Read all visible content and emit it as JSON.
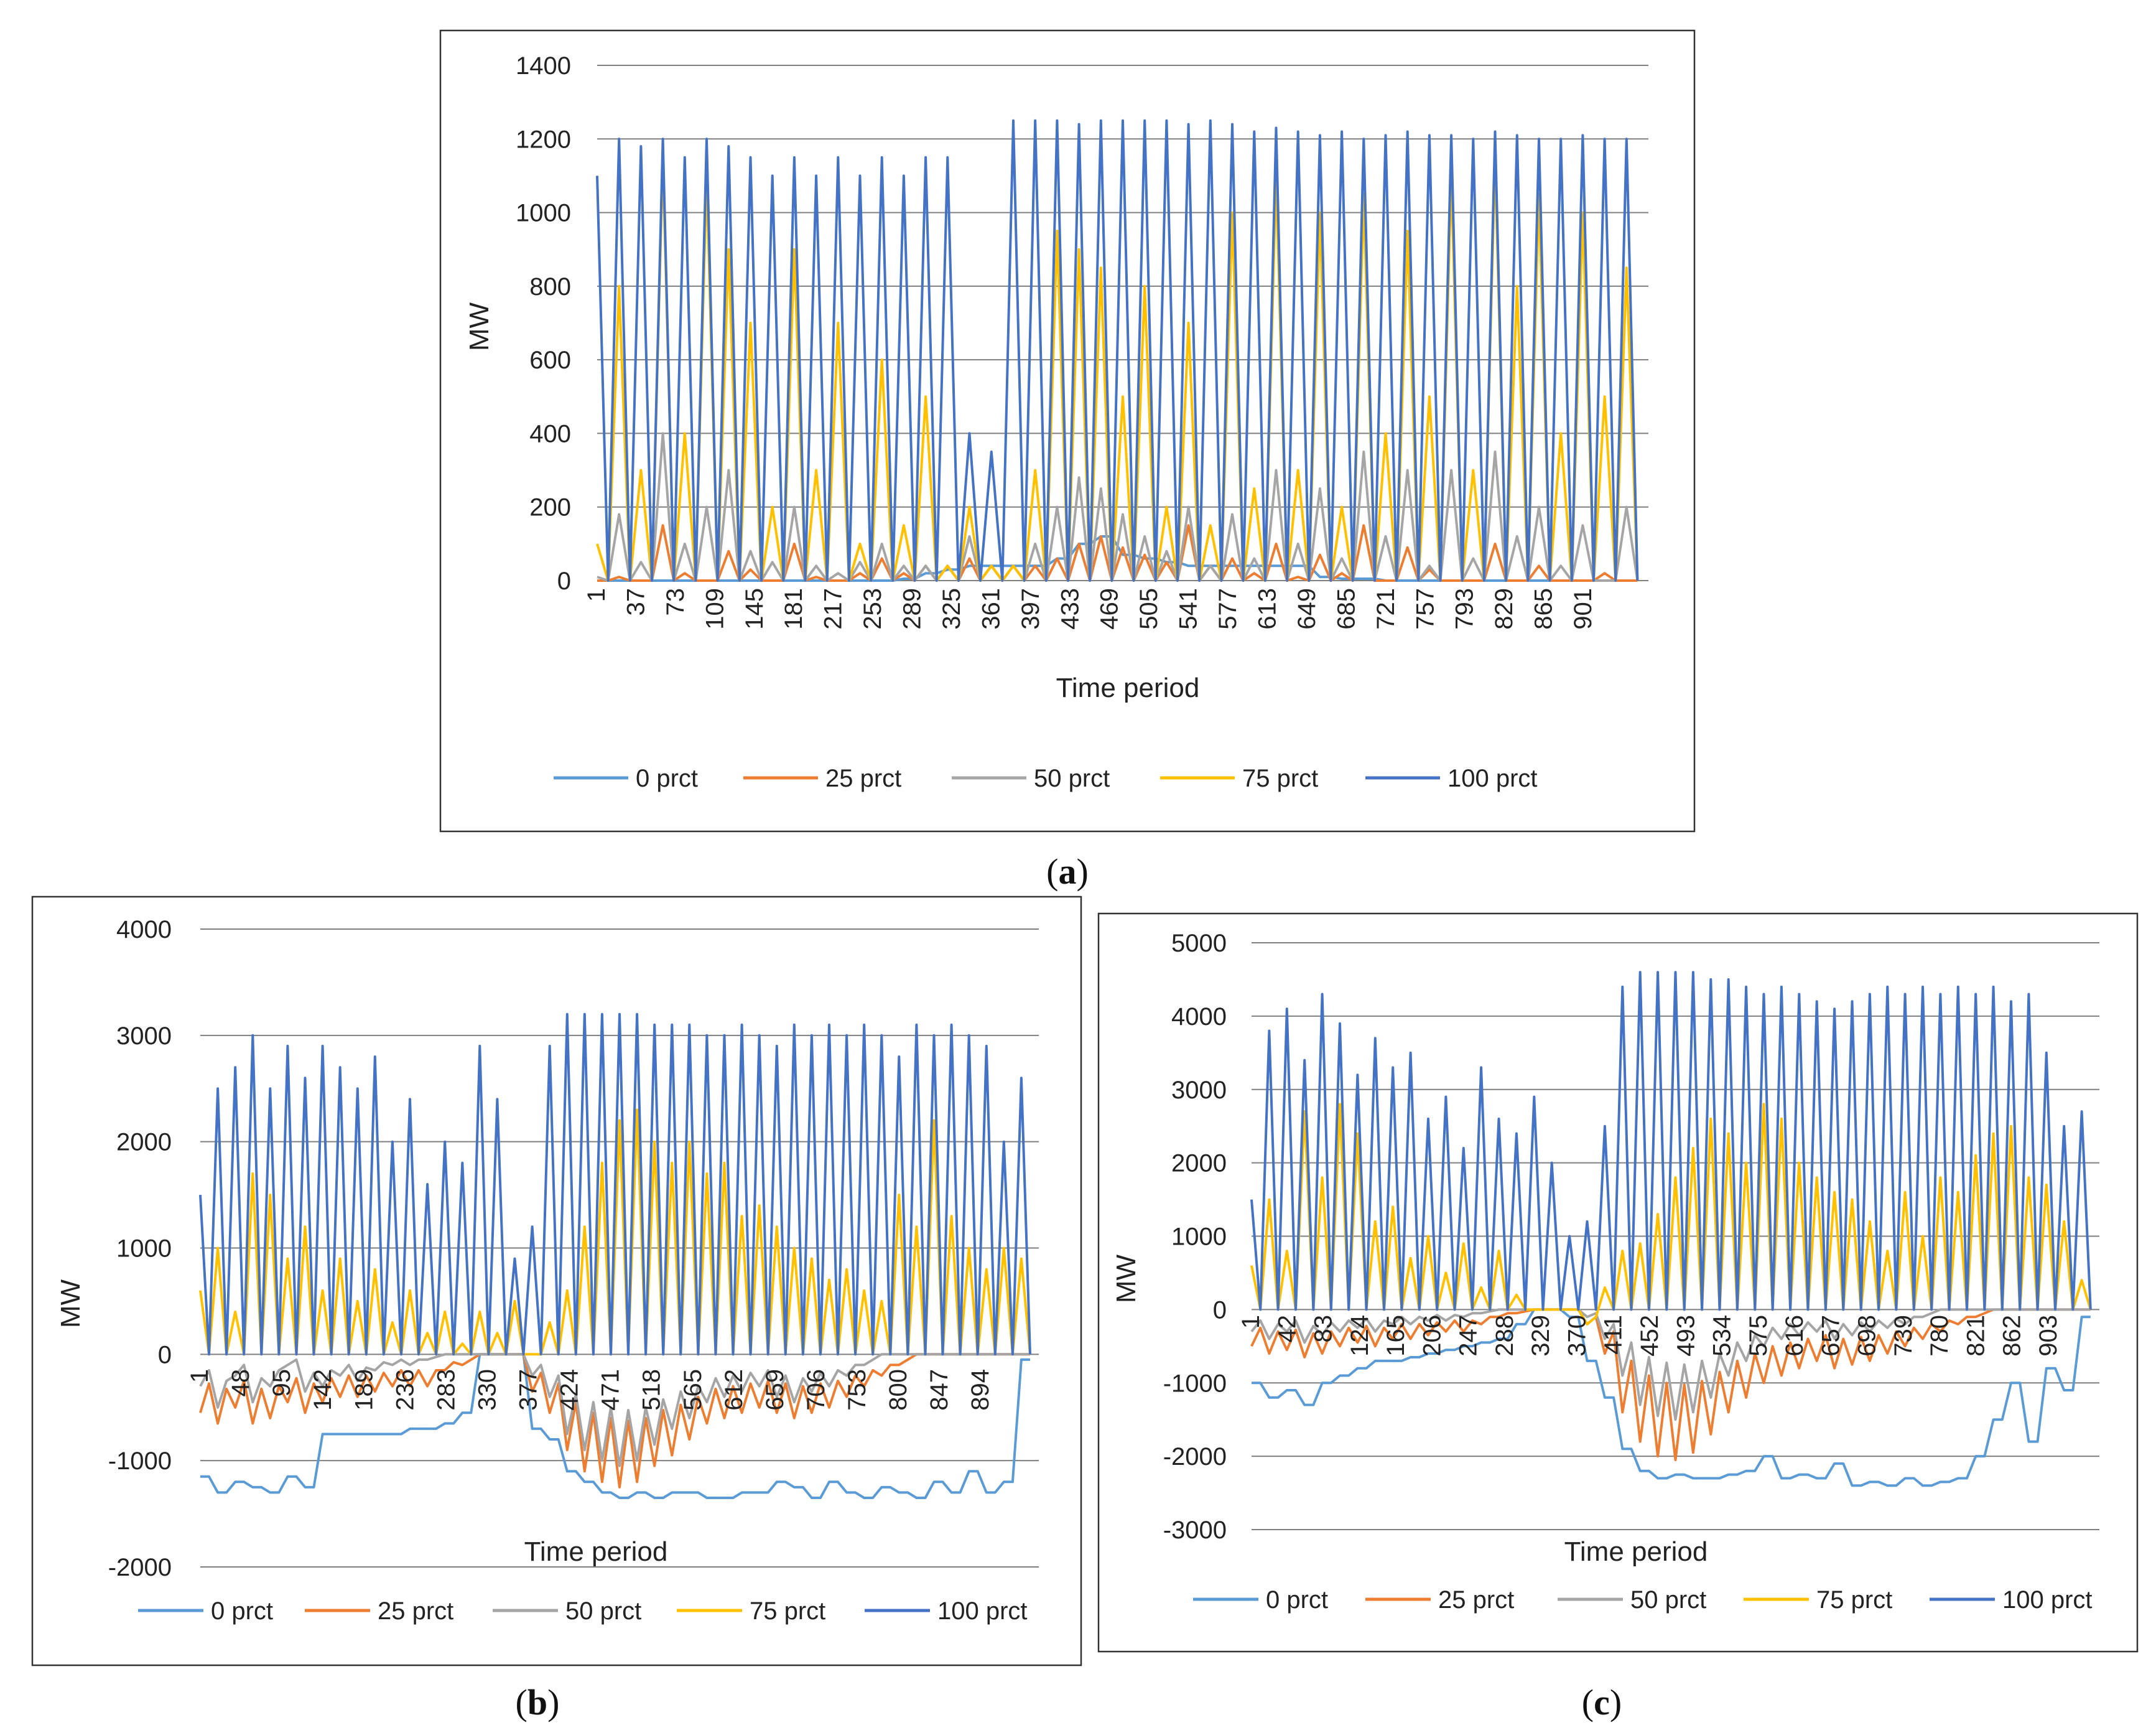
{
  "figure": {
    "panel_a_label": "a",
    "panel_b_label": "b",
    "panel_c_label": "c"
  },
  "colors": {
    "0 prct": "#5B9BD5",
    "25 prct": "#ED7D31",
    "50 prct": "#A5A5A5",
    "75 prct": "#FFC000",
    "100 prct": "#4472C4"
  },
  "chart_data": [
    {
      "panel": "a",
      "type": "line",
      "title": "",
      "xlabel": "Time period",
      "ylabel": "MW",
      "ylim": [
        0,
        1400
      ],
      "yticks": [
        0,
        200,
        400,
        600,
        800,
        1000,
        1200,
        1400
      ],
      "xlim": [
        1,
        960
      ],
      "x_tick_labels": [
        "1",
        "37",
        "73",
        "109",
        "145",
        "181",
        "217",
        "253",
        "289",
        "325",
        "361",
        "397",
        "433",
        "469",
        "505",
        "541",
        "577",
        "613",
        "649",
        "685",
        "721",
        "757",
        "793",
        "829",
        "865",
        "901"
      ],
      "legend_position": "bottom",
      "series": [
        {
          "name": "0 prct",
          "values": [
            0,
            0,
            0,
            0,
            0,
            0,
            0,
            0,
            0,
            0,
            0,
            0,
            0,
            0,
            5,
            20,
            30,
            40,
            40,
            40,
            40,
            60,
            100,
            120,
            70,
            60,
            50,
            40,
            40,
            40,
            40,
            40,
            40,
            10,
            5,
            5,
            0,
            0,
            0,
            0,
            0,
            0,
            0,
            0,
            0,
            0,
            0,
            0
          ]
        },
        {
          "name": "25 prct",
          "values": [
            0,
            10,
            0,
            150,
            20,
            0,
            80,
            30,
            0,
            100,
            10,
            0,
            20,
            60,
            20,
            40,
            40,
            60,
            40,
            40,
            40,
            60,
            100,
            120,
            90,
            70,
            50,
            150,
            40,
            60,
            20,
            100,
            10,
            70,
            20,
            150,
            0,
            90,
            30,
            0,
            0,
            100,
            0,
            40,
            0,
            0,
            20,
            0
          ]
        },
        {
          "name": "50 prct",
          "values": [
            10,
            180,
            50,
            400,
            100,
            200,
            300,
            80,
            50,
            200,
            40,
            20,
            50,
            100,
            40,
            40,
            40,
            120,
            40,
            40,
            100,
            200,
            280,
            250,
            180,
            120,
            80,
            200,
            40,
            180,
            60,
            300,
            100,
            250,
            60,
            350,
            120,
            300,
            40,
            300,
            60,
            350,
            120,
            200,
            40,
            150,
            0,
            200
          ]
        },
        {
          "name": "75 prct",
          "values": [
            100,
            800,
            300,
            1150,
            400,
            1100,
            900,
            700,
            200,
            900,
            300,
            700,
            100,
            600,
            150,
            500,
            40,
            200,
            40,
            40,
            300,
            950,
            900,
            850,
            500,
            800,
            200,
            700,
            150,
            1000,
            250,
            1100,
            300,
            1000,
            200,
            1050,
            400,
            950,
            500,
            1100,
            300,
            1150,
            800,
            1050,
            400,
            1000,
            500,
            850
          ]
        },
        {
          "name": "100 prct",
          "values": [
            1100,
            1200,
            1180,
            1200,
            1150,
            1200,
            1180,
            1150,
            1100,
            1150,
            1100,
            1150,
            1100,
            1150,
            1100,
            1150,
            1150,
            400,
            350,
            1250,
            1250,
            1250,
            1240,
            1250,
            1250,
            1250,
            1250,
            1240,
            1250,
            1240,
            1220,
            1230,
            1220,
            1210,
            1220,
            1200,
            1210,
            1220,
            1210,
            1210,
            1200,
            1220,
            1210,
            1200,
            1200,
            1210,
            1200,
            1200
          ]
        }
      ]
    },
    {
      "panel": "b",
      "type": "line",
      "title": "",
      "xlabel": "Time period",
      "ylabel": "MW",
      "ylim": [
        -2000,
        4000
      ],
      "yticks": [
        -2000,
        -1000,
        0,
        1000,
        2000,
        3000,
        4000
      ],
      "xlim": [
        1,
        960
      ],
      "x_tick_labels": [
        "1",
        "48",
        "95",
        "142",
        "189",
        "236",
        "283",
        "330",
        "377",
        "424",
        "471",
        "518",
        "565",
        "612",
        "659",
        "706",
        "753",
        "800",
        "847",
        "894"
      ],
      "legend_position": "bottom",
      "series": [
        {
          "name": "0 prct",
          "values": [
            -1150,
            -1300,
            -1200,
            -1250,
            -1300,
            -1150,
            -1250,
            -750,
            -750,
            -750,
            -750,
            -750,
            -700,
            -700,
            -650,
            -550,
            0,
            0,
            0,
            -700,
            -800,
            -1100,
            -1200,
            -1300,
            -1350,
            -1300,
            -1350,
            -1300,
            -1300,
            -1350,
            -1350,
            -1300,
            -1300,
            -1200,
            -1250,
            -1350,
            -1200,
            -1300,
            -1350,
            -1250,
            -1300,
            -1350,
            -1200,
            -1300,
            -1100,
            -1300,
            -1200,
            -50
          ]
        },
        {
          "name": "25 prct",
          "values": [
            -550,
            -650,
            -500,
            -650,
            -600,
            -450,
            -550,
            -450,
            -400,
            -400,
            -350,
            -300,
            -300,
            -300,
            -150,
            -100,
            0,
            0,
            0,
            -350,
            -550,
            -900,
            -1100,
            -1200,
            -1250,
            -1200,
            -1050,
            -950,
            -800,
            -650,
            -600,
            -550,
            -500,
            -550,
            -600,
            -550,
            -500,
            -400,
            -300,
            -200,
            -100,
            0,
            0,
            0,
            0,
            0,
            0,
            0
          ]
        },
        {
          "name": "50 prct",
          "values": [
            -300,
            -500,
            -200,
            -450,
            -300,
            -100,
            -350,
            -300,
            -200,
            -250,
            -150,
            -100,
            -100,
            -50,
            0,
            0,
            0,
            0,
            0,
            -200,
            -400,
            -750,
            -900,
            -1000,
            -1050,
            -1000,
            -850,
            -700,
            -600,
            -450,
            -400,
            -350,
            -300,
            -400,
            -450,
            -350,
            -300,
            -200,
            -100,
            0,
            0,
            0,
            0,
            0,
            0,
            0,
            0,
            0
          ]
        },
        {
          "name": "75 prct",
          "values": [
            600,
            1000,
            400,
            1700,
            1500,
            900,
            1200,
            600,
            900,
            500,
            800,
            300,
            600,
            200,
            400,
            100,
            400,
            200,
            500,
            0,
            300,
            600,
            1200,
            1800,
            2200,
            2300,
            2000,
            1800,
            2000,
            1700,
            1800,
            1300,
            1400,
            1200,
            1000,
            900,
            700,
            800,
            600,
            500,
            1500,
            1200,
            2200,
            1300,
            1000,
            800,
            1000,
            900
          ]
        },
        {
          "name": "100 prct",
          "values": [
            1500,
            2500,
            2700,
            3000,
            2500,
            2900,
            2600,
            2900,
            2700,
            2500,
            2800,
            2000,
            2400,
            1600,
            2000,
            1800,
            2900,
            2400,
            900,
            1200,
            2900,
            3200,
            3200,
            3200,
            3200,
            3200,
            3100,
            3100,
            3100,
            3000,
            3000,
            3100,
            3000,
            2900,
            3100,
            3000,
            3100,
            3000,
            3100,
            3000,
            2800,
            3100,
            3000,
            3100,
            3000,
            2900,
            2000,
            2600
          ]
        }
      ]
    },
    {
      "panel": "c",
      "type": "line",
      "title": "",
      "xlabel": "Time period",
      "ylabel": "MW",
      "ylim": [
        -3000,
        5000
      ],
      "yticks": [
        -3000,
        -2000,
        -1000,
        0,
        1000,
        2000,
        3000,
        4000,
        5000
      ],
      "xlim": [
        1,
        960
      ],
      "x_tick_labels": [
        "1",
        "42",
        "83",
        "124",
        "165",
        "206",
        "247",
        "288",
        "329",
        "370",
        "411",
        "452",
        "493",
        "534",
        "575",
        "616",
        "657",
        "698",
        "739",
        "780",
        "821",
        "862",
        "903"
      ],
      "legend_position": "bottom",
      "series": [
        {
          "name": "0 prct",
          "values": [
            -1000,
            -1200,
            -1100,
            -1300,
            -1000,
            -900,
            -800,
            -700,
            -700,
            -650,
            -600,
            -550,
            -500,
            -450,
            -400,
            -200,
            0,
            0,
            -100,
            -700,
            -1200,
            -1900,
            -2200,
            -2300,
            -2250,
            -2300,
            -2300,
            -2250,
            -2200,
            -2000,
            -2300,
            -2250,
            -2300,
            -2100,
            -2400,
            -2350,
            -2400,
            -2300,
            -2400,
            -2350,
            -2300,
            -2000,
            -1500,
            -1000,
            -1800,
            -800,
            -1100,
            -100
          ]
        },
        {
          "name": "25 prct",
          "values": [
            -500,
            -600,
            -550,
            -650,
            -600,
            -500,
            -450,
            -500,
            -400,
            -400,
            -350,
            -300,
            -300,
            -200,
            -100,
            -50,
            0,
            0,
            0,
            -200,
            -600,
            -1400,
            -1800,
            -2000,
            -2050,
            -1950,
            -1700,
            -1400,
            -1200,
            -1000,
            -900,
            -800,
            -700,
            -800,
            -750,
            -700,
            -600,
            -500,
            -400,
            -300,
            -200,
            -100,
            0,
            0,
            0,
            0,
            0,
            0
          ]
        },
        {
          "name": "50 prct",
          "values": [
            -300,
            -400,
            -300,
            -450,
            -350,
            -300,
            -250,
            -300,
            -200,
            -200,
            -150,
            -150,
            -100,
            -50,
            0,
            0,
            0,
            0,
            0,
            -100,
            -400,
            -900,
            -1300,
            -1450,
            -1500,
            -1400,
            -1200,
            -900,
            -700,
            -500,
            -400,
            -350,
            -300,
            -400,
            -350,
            -300,
            -250,
            -200,
            -100,
            0,
            0,
            0,
            0,
            0,
            0,
            0,
            0,
            0
          ]
        },
        {
          "name": "75 prct",
          "values": [
            600,
            1500,
            800,
            2700,
            1800,
            2800,
            2400,
            1200,
            1400,
            700,
            1000,
            500,
            900,
            300,
            800,
            200,
            0,
            0,
            0,
            -200,
            300,
            800,
            900,
            1300,
            1800,
            2200,
            2600,
            2400,
            2000,
            2800,
            2600,
            2000,
            1800,
            1600,
            1500,
            1200,
            800,
            1600,
            1000,
            1800,
            1600,
            2100,
            2400,
            2500,
            1800,
            1700,
            1200,
            400
          ]
        },
        {
          "name": "100 prct",
          "values": [
            1500,
            3800,
            4100,
            3400,
            4300,
            3900,
            3200,
            3700,
            3300,
            3500,
            2600,
            2900,
            2200,
            3300,
            2600,
            2400,
            2900,
            2000,
            1000,
            1200,
            2500,
            4400,
            4600,
            4600,
            4600,
            4600,
            4500,
            4500,
            4400,
            4300,
            4400,
            4300,
            4200,
            4100,
            4200,
            4300,
            4400,
            4300,
            4400,
            4300,
            4400,
            4300,
            4400,
            4200,
            4300,
            3500,
            2500,
            2700
          ]
        }
      ]
    }
  ]
}
